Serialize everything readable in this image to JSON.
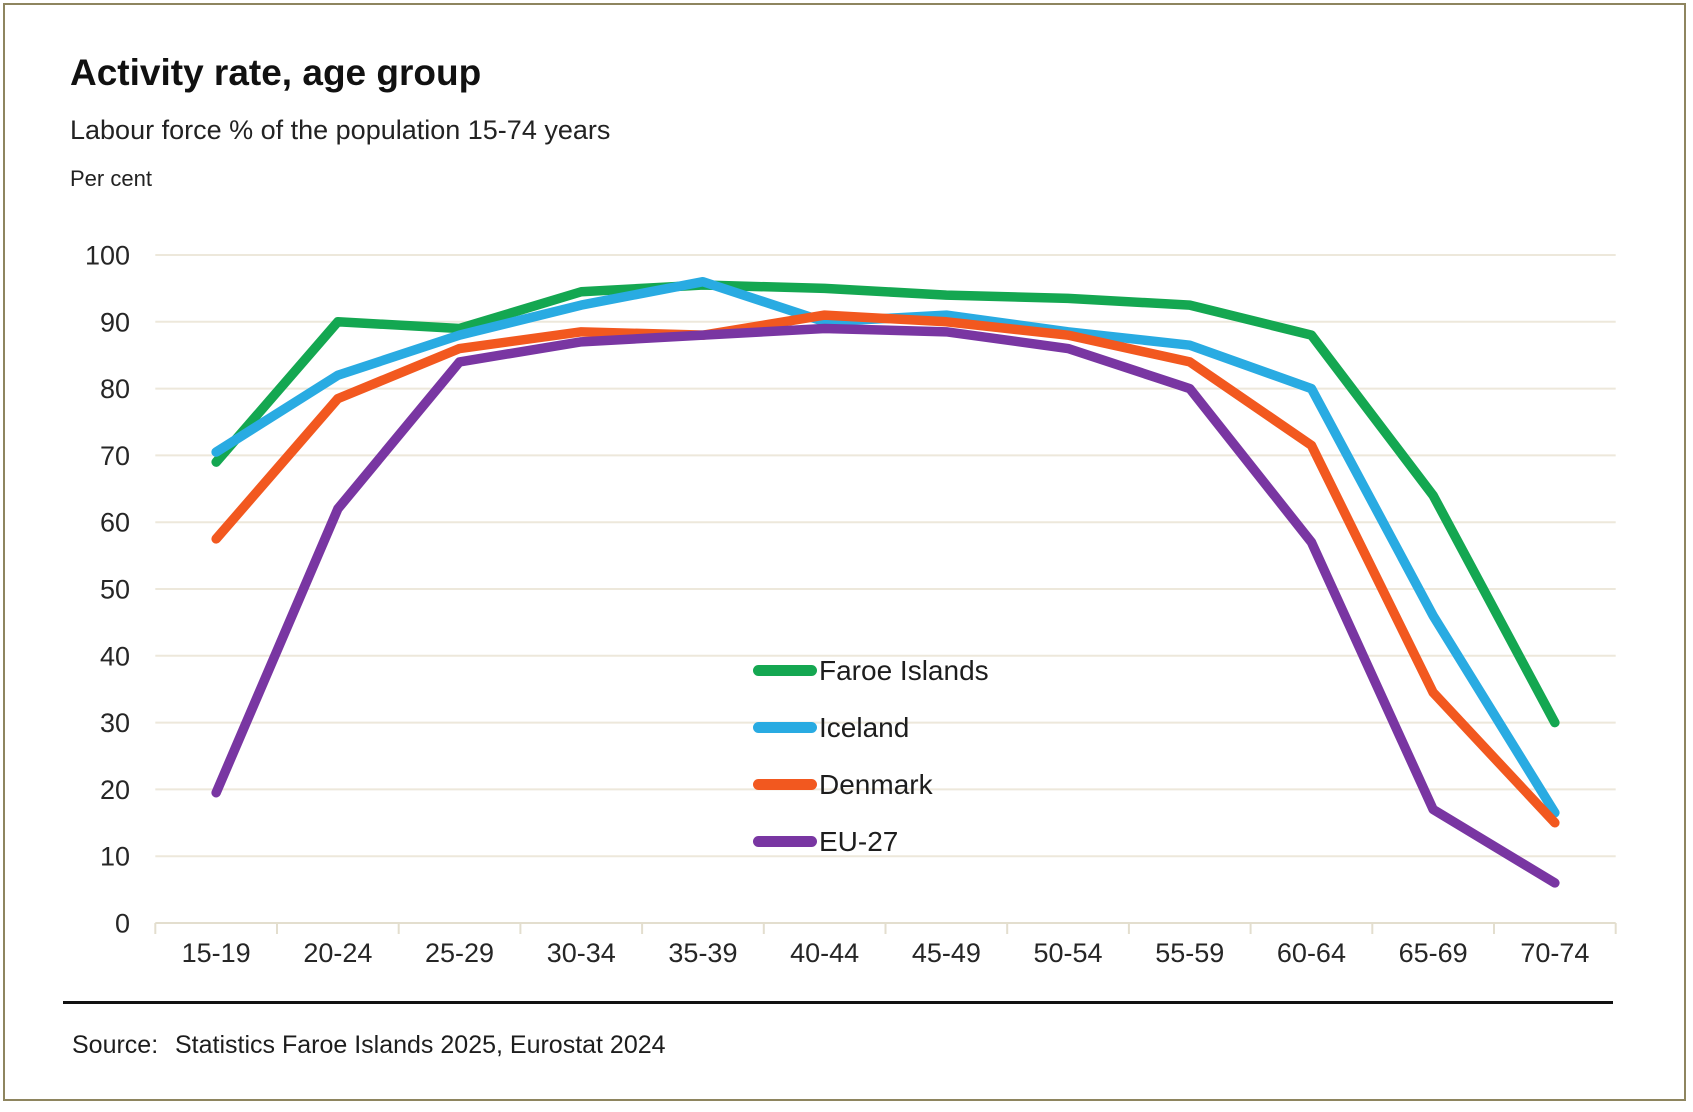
{
  "page": {
    "title": "Activity rate, age group",
    "subtitle": "Labour force % of the population 15-74 years",
    "unit_label": "Per cent",
    "source_label": "Source:",
    "source_text": "Statistics Faroe Islands 2025, Eurostat 2024"
  },
  "colors": {
    "grid": "#EDE8DB",
    "axis_tick": "#E3DECE",
    "text": "#262626",
    "divider": "#111111",
    "page_border": "#8E855F"
  },
  "chart_data": {
    "type": "line",
    "title": "Activity rate, age group",
    "subtitle": "Labour force % of the population 15-74 years",
    "xlabel": "",
    "ylabel": "Per cent",
    "categories": [
      "15-19",
      "20-24",
      "25-29",
      "30-34",
      "35-39",
      "40-44",
      "45-49",
      "50-54",
      "55-59",
      "60-64",
      "65-69",
      "70-74"
    ],
    "series": [
      {
        "name": "Faroe Islands",
        "color": "#14A751",
        "values": [
          69,
          90,
          89,
          94.5,
          95.5,
          95,
          94,
          93.5,
          92.5,
          88,
          64,
          30
        ]
      },
      {
        "name": "Iceland",
        "color": "#29ABE2",
        "values": [
          70.5,
          82,
          88,
          92.5,
          96,
          90,
          91,
          88.5,
          86.5,
          80,
          46,
          16.5
        ]
      },
      {
        "name": "Denmark",
        "color": "#F2581F",
        "values": [
          57.5,
          78.5,
          86,
          88.5,
          88,
          91,
          90,
          88,
          84,
          71.5,
          34.5,
          15
        ]
      },
      {
        "name": "EU-27",
        "color": "#7936A2",
        "values": [
          19.5,
          62,
          84,
          87,
          88,
          89,
          88.5,
          86,
          80,
          57,
          17,
          6
        ]
      }
    ],
    "ylim": [
      0,
      100
    ],
    "ytick_step": 10,
    "grid": "horizontal",
    "legend_position": "inside-center-right"
  }
}
